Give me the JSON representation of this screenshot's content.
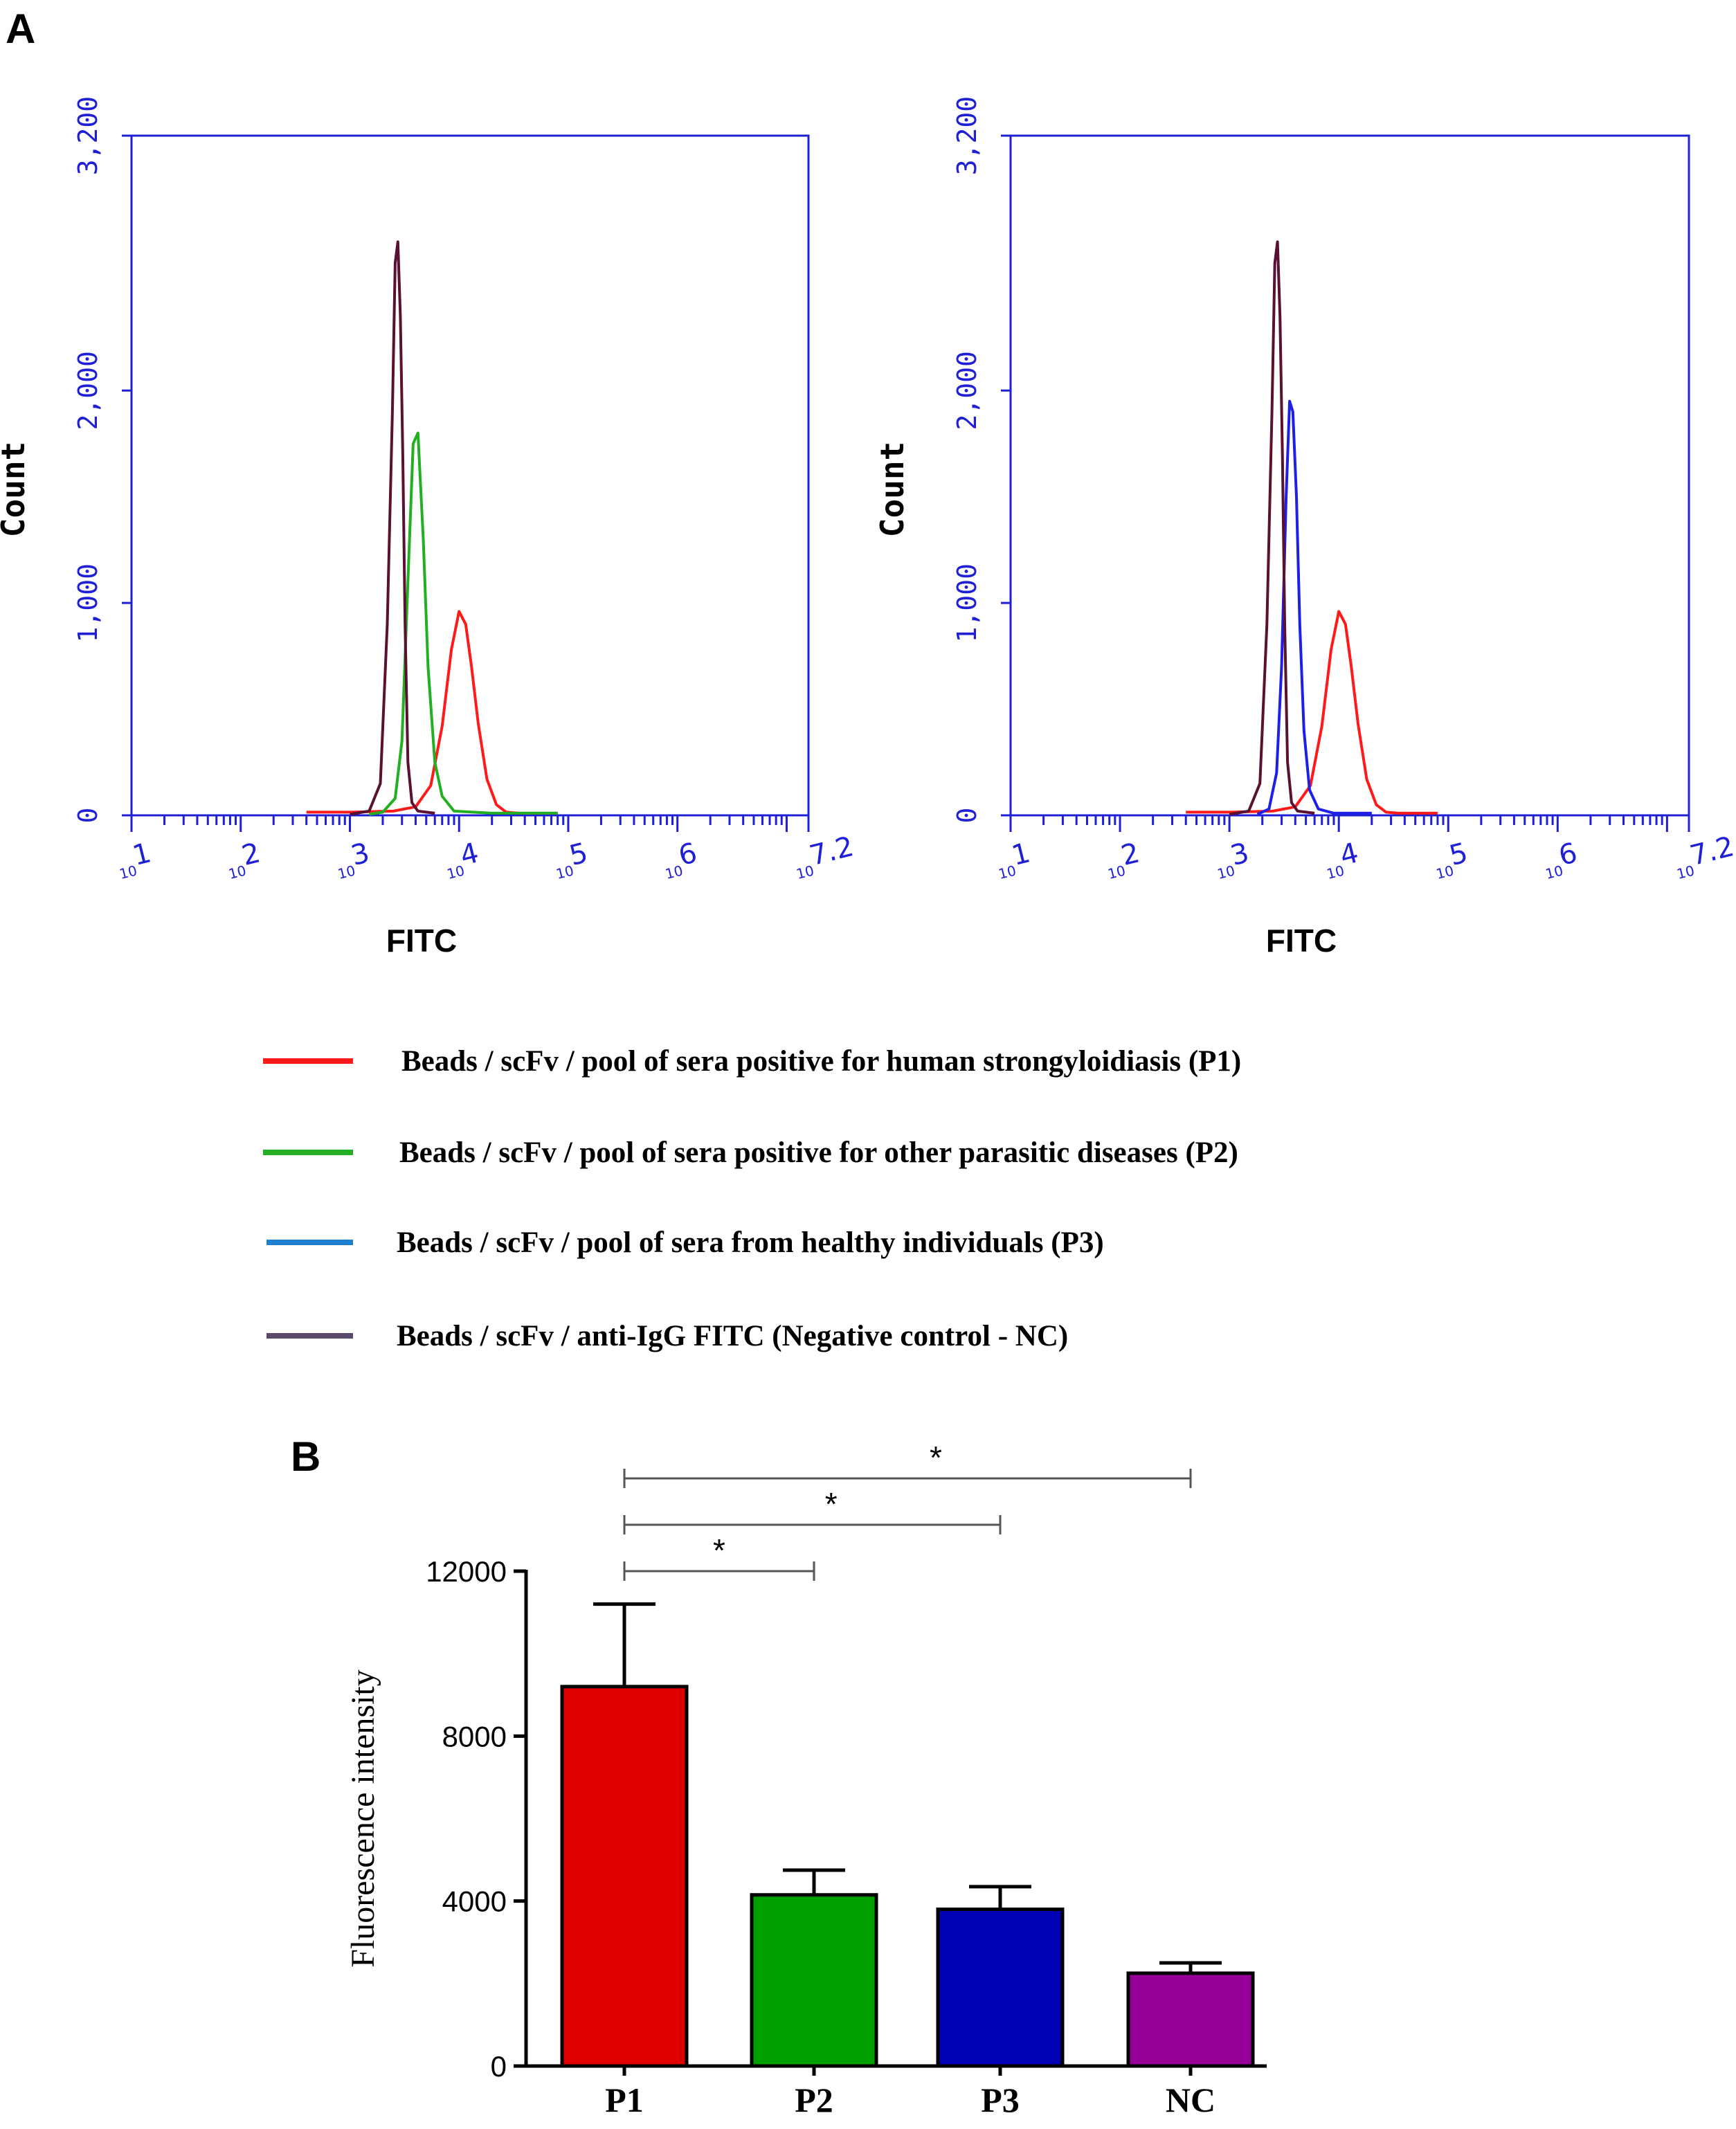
{
  "panel_a_label": "A",
  "panel_b_label": "B",
  "chart_data": [
    {
      "type": "line",
      "panel": "A-left",
      "xlabel": "FITC",
      "ylabel": "Count",
      "x_scale": "log",
      "xlim": [
        10,
        15848932
      ],
      "ylim": [
        0,
        3200
      ],
      "y_ticks": [
        0,
        1000,
        2000,
        3200
      ],
      "y_tick_labels": [
        "0",
        "1,000",
        "2,000",
        "3,200"
      ],
      "x_ticks": [
        {
          "base": "10",
          "exp": "1"
        },
        {
          "base": "10",
          "exp": "2"
        },
        {
          "base": "10",
          "exp": "3"
        },
        {
          "base": "10",
          "exp": "4"
        },
        {
          "base": "10",
          "exp": "5"
        },
        {
          "base": "10",
          "exp": "6"
        },
        {
          "base": "10",
          "exp": "7.2"
        }
      ],
      "grid": false,
      "series": [
        {
          "key": "P1",
          "color": "#ff1a1a",
          "x": [
            400,
            1000,
            2500,
            4000,
            5500,
            7000,
            8500,
            10000,
            11500,
            13000,
            15000,
            18000,
            22000,
            27000,
            35000,
            50000,
            80000
          ],
          "y": [
            15,
            15,
            20,
            40,
            140,
            420,
            780,
            960,
            900,
            700,
            430,
            170,
            50,
            15,
            10,
            10,
            10
          ]
        },
        {
          "key": "P2",
          "color": "#22b022",
          "x": [
            1500,
            2000,
            2600,
            3000,
            3400,
            3800,
            4200,
            4700,
            5200,
            6000,
            7000,
            9000,
            20000,
            80000
          ],
          "y": [
            5,
            15,
            80,
            350,
            1100,
            1750,
            1800,
            1300,
            700,
            250,
            90,
            20,
            10,
            10
          ]
        },
        {
          "key": "NC",
          "color": "#5a1030",
          "x": [
            1000,
            1500,
            1900,
            2200,
            2450,
            2600,
            2750,
            2900,
            3050,
            3200,
            3400,
            3700,
            4200,
            6000
          ],
          "y": [
            5,
            20,
            150,
            900,
            1900,
            2600,
            2700,
            2350,
            1700,
            900,
            250,
            60,
            20,
            10
          ]
        }
      ]
    },
    {
      "type": "line",
      "panel": "A-right",
      "xlabel": "FITC",
      "ylabel": "Count",
      "x_scale": "log",
      "xlim": [
        10,
        15848932
      ],
      "ylim": [
        0,
        3200
      ],
      "y_ticks": [
        0,
        1000,
        2000,
        3200
      ],
      "y_tick_labels": [
        "0",
        "1,000",
        "2,000",
        "3,200"
      ],
      "x_ticks": [
        {
          "base": "10",
          "exp": "1"
        },
        {
          "base": "10",
          "exp": "2"
        },
        {
          "base": "10",
          "exp": "3"
        },
        {
          "base": "10",
          "exp": "4"
        },
        {
          "base": "10",
          "exp": "5"
        },
        {
          "base": "10",
          "exp": "6"
        },
        {
          "base": "10",
          "exp": "7.2"
        }
      ],
      "grid": false,
      "series": [
        {
          "key": "P1",
          "color": "#ff1a1a",
          "x": [
            400,
            1000,
            2500,
            4000,
            5500,
            7000,
            8500,
            10000,
            11500,
            13000,
            15000,
            18000,
            22000,
            27000,
            35000,
            50000,
            80000
          ],
          "y": [
            15,
            15,
            20,
            40,
            140,
            420,
            780,
            960,
            900,
            700,
            430,
            170,
            50,
            15,
            10,
            10,
            10
          ]
        },
        {
          "key": "P3",
          "color": "#1f1fe6",
          "x": [
            1800,
            2300,
            2700,
            3000,
            3300,
            3550,
            3800,
            4100,
            4400,
            4800,
            5400,
            6500,
            9000,
            20000
          ],
          "y": [
            5,
            30,
            200,
            700,
            1500,
            1950,
            1900,
            1500,
            900,
            400,
            120,
            30,
            10,
            10
          ]
        },
        {
          "key": "NC",
          "color": "#5a1030",
          "x": [
            1000,
            1500,
            1900,
            2200,
            2450,
            2600,
            2750,
            2900,
            3050,
            3200,
            3400,
            3700,
            4200,
            6000
          ],
          "y": [
            5,
            20,
            150,
            900,
            1900,
            2600,
            2700,
            2350,
            1700,
            900,
            250,
            60,
            20,
            10
          ]
        }
      ]
    },
    {
      "type": "bar",
      "panel": "B",
      "categories": [
        "P1",
        "P2",
        "P3",
        "NC"
      ],
      "values": [
        9200,
        4150,
        3800,
        2250
      ],
      "errors": [
        2000,
        600,
        550,
        250
      ],
      "colors": [
        "#e00000",
        "#00a000",
        "#0000b4",
        "#960096"
      ],
      "ylabel": "Fluorescence intensity",
      "ylim": [
        0,
        12000
      ],
      "y_ticks": [
        0,
        4000,
        8000,
        12000
      ],
      "y_tick_labels": [
        "0",
        "4000",
        "8000",
        "12000"
      ],
      "significance": [
        {
          "from": "P1",
          "to": "P2",
          "label": "*"
        },
        {
          "from": "P1",
          "to": "P3",
          "label": "*"
        },
        {
          "from": "P1",
          "to": "NC",
          "label": "*"
        }
      ]
    }
  ],
  "legend": [
    {
      "color": "#ff1a1a",
      "label": "Beads / scFv / pool of sera positive for human strongyloidiasis (P1)"
    },
    {
      "color": "#22b022",
      "label": "Beads / scFv / pool of sera positive for other parasitic diseases (P2)"
    },
    {
      "color": "#1f7fd0",
      "label": "Beads / scFv / pool of sera from healthy individuals (P3)"
    },
    {
      "color": "#5a4a6a",
      "label": "Beads / scFv / anti-IgG FITC (Negative control - NC)"
    }
  ]
}
